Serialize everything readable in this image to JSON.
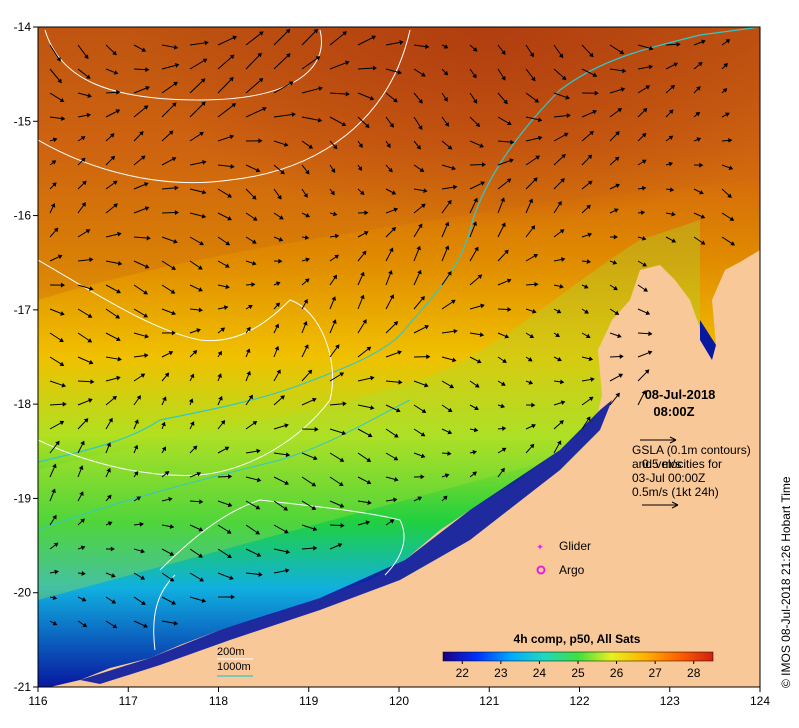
{
  "map": {
    "lon_ticks": [
      "116",
      "117",
      "118",
      "119",
      "120",
      "121",
      "122",
      "123",
      "124"
    ],
    "lat_ticks": [
      "-14",
      "-15",
      "-16",
      "-17",
      "-18",
      "-19",
      "-20",
      "-21"
    ],
    "lon_range": [
      116,
      124
    ],
    "lat_range": [
      -21,
      -14
    ]
  },
  "date_label": {
    "date": "08-Jul-2018",
    "time": "08:00Z"
  },
  "gsla_legend": {
    "line1": "GSLA (0.1m contours)",
    "line2": "and velocities for",
    "line3": "03-Jul 00:00Z",
    "line4": "0.5m/s (1kt 24h)",
    "arrow_label": "0.5 m/s"
  },
  "markers": {
    "glider": "Glider",
    "argo": "Argo"
  },
  "bathymetry_legend": {
    "contour_200": "200m",
    "contour_1000": "1000m",
    "color_1000": "#30c8c8"
  },
  "colorbar": {
    "title": "4h comp, p50, All Sats",
    "ticks": [
      "22",
      "23",
      "24",
      "25",
      "26",
      "27",
      "28"
    ],
    "range": [
      21.5,
      28.5
    ],
    "colors": [
      "#1a0080",
      "#0030ff",
      "#00a8ff",
      "#20d8c0",
      "#40e040",
      "#e8f020",
      "#ffb000",
      "#ff6000",
      "#d02010"
    ]
  },
  "credit": "© IMOS 08-Jul-2018 21:26 Hobart Time",
  "land_color": "#f8c898"
}
